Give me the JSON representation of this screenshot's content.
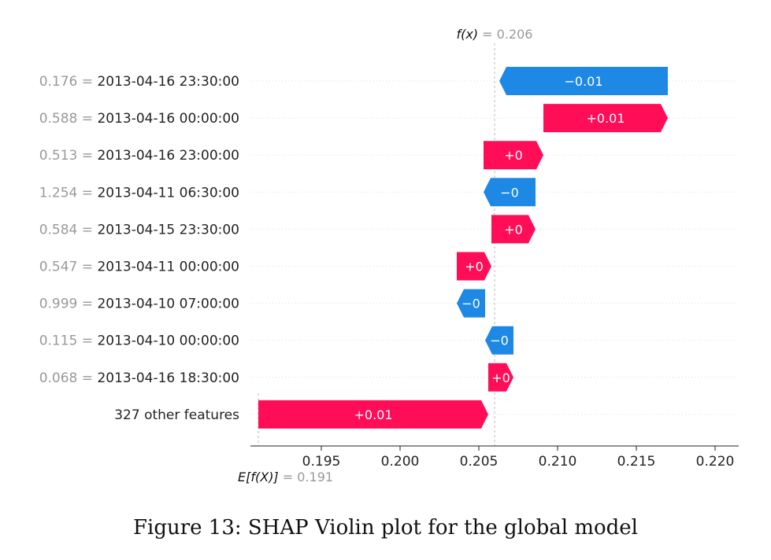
{
  "chart_data": {
    "type": "waterfall",
    "fx_prefix": "f(x)",
    "fx_value_label": " = 0.206",
    "fx_value": 0.206,
    "ex_prefix": "E[f(X)]",
    "ex_value_label": " = 0.191",
    "ex_value": 0.191,
    "xlim": [
      0.1905,
      0.2215
    ],
    "xticks": [
      0.195,
      0.2,
      0.205,
      0.21,
      0.215,
      0.22
    ],
    "xtick_labels": [
      "0.195",
      "0.200",
      "0.205",
      "0.210",
      "0.215",
      "0.220"
    ],
    "rows": [
      {
        "value_label": "0.176",
        "feature": "2013-04-16 23:30:00",
        "start": 0.217,
        "end": 0.2063,
        "text": "−0.01",
        "sign": "neg"
      },
      {
        "value_label": "0.588",
        "feature": "2013-04-16 00:00:00",
        "start": 0.2091,
        "end": 0.217,
        "text": "+0.01",
        "sign": "pos"
      },
      {
        "value_label": "0.513",
        "feature": "2013-04-16 23:00:00",
        "start": 0.2053,
        "end": 0.2091,
        "text": "+0",
        "sign": "pos"
      },
      {
        "value_label": "1.254",
        "feature": "2013-04-11 06:30:00",
        "start": 0.2086,
        "end": 0.2053,
        "text": "−0",
        "sign": "neg"
      },
      {
        "value_label": "0.584",
        "feature": "2013-04-15 23:30:00",
        "start": 0.2058,
        "end": 0.2086,
        "text": "+0",
        "sign": "pos"
      },
      {
        "value_label": "0.547",
        "feature": "2013-04-11 00:00:00",
        "start": 0.2036,
        "end": 0.2058,
        "text": "+0",
        "sign": "pos"
      },
      {
        "value_label": "0.999",
        "feature": "2013-04-10 07:00:00",
        "start": 0.2054,
        "end": 0.2036,
        "text": "−0",
        "sign": "neg"
      },
      {
        "value_label": "0.115",
        "feature": "2013-04-10 00:00:00",
        "start": 0.2072,
        "end": 0.2054,
        "text": "−0",
        "sign": "neg"
      },
      {
        "value_label": "0.068",
        "feature": "2013-04-16 18:30:00",
        "start": 0.2056,
        "end": 0.2072,
        "text": "+0",
        "sign": "pos"
      },
      {
        "value_label": "",
        "feature": "327 other features",
        "start": 0.191,
        "end": 0.2056,
        "text": "+0.01",
        "sign": "pos"
      }
    ],
    "colors": {
      "pos": "#ff0d57",
      "neg": "#1e88e5",
      "label_grey": "#999999",
      "text": "#222222"
    }
  },
  "caption": "Figure 13: SHAP Violin plot for the global model"
}
